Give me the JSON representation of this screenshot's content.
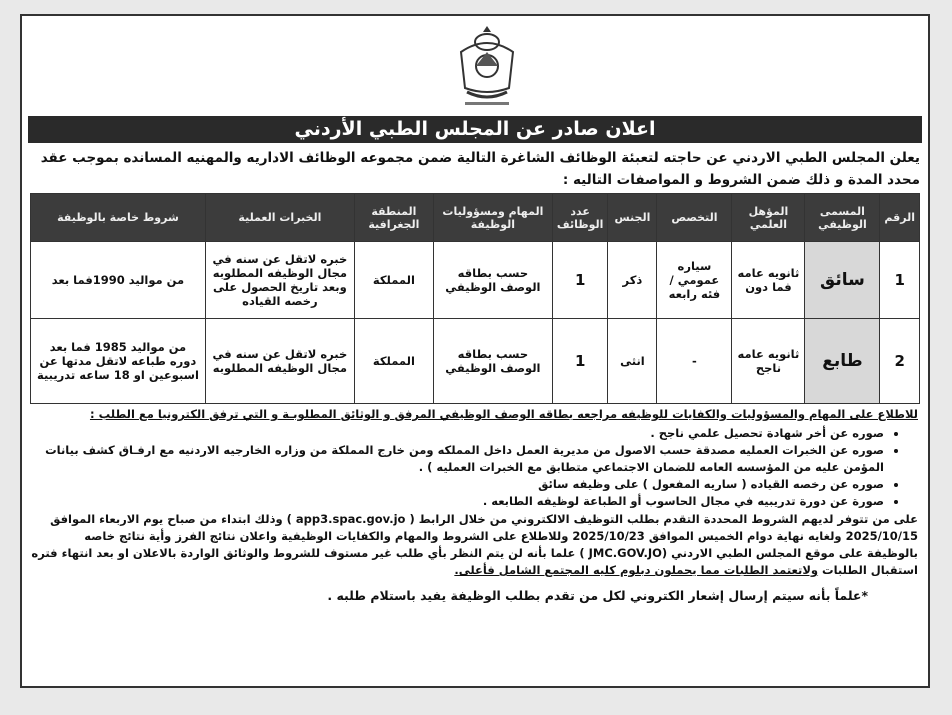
{
  "header": {
    "title": "اعلان صادر عن المجلس الطبي الأردني",
    "emblem_icon": "jordan-coat-of-arms-icon"
  },
  "intro": "يعلن المجلس الطبي الاردني  عن حاجته لتعبئة الوظائف الشاغرة التالية ضمن مجموعه الوظائف الاداريه والمهنيه المسانده بموجب عقد محدد المدة  و ذلك ضمن الشروط و المواصفات التاليه :",
  "table": {
    "headers": [
      "الرقم",
      "المسمى الوظيفي",
      "المؤهل العلمي",
      "التخصص",
      "الجنس",
      "عدد الوظائف",
      "المهام ومسؤوليات الوظيفة",
      "المنطقة الجغرافية",
      "الخبرات العملية",
      "شروط خاصة بالوظيفة"
    ],
    "rows": [
      [
        "1",
        "سائق",
        "ثانويه عامه فما دون",
        "سياره عمومي / فئه رابعه",
        "ذكر",
        "1",
        "حسب بطاقه الوصف الوظيفي",
        "المملكة",
        "خبره لاتقل عن سنه في مجال الوظيفه المطلوبه وبعد تاريخ الحصول على رخصه القياده",
        "من مواليد 1990فما بعد"
      ],
      [
        "2",
        "طابع",
        "ثانويه عامه ناجح",
        "-",
        "انثى",
        "1",
        "حسب بطاقه الوصف الوظيفي",
        "المملكة",
        "خبره لاتقل عن سنه في مجال الوظيفه المطلوبه",
        "من مواليد 1985 فما بعد دوره طباعه لاتقل مدتها عن اسبوعين او 18 ساعه تدريبية"
      ]
    ]
  },
  "notes": {
    "heading": "للاطلاع على المهام والمسؤوليات والكفايات للوظيفه مراجعه بطاقه الوصف الوظيفي المرفق و الوثائق المطلوبـة و التي ترفق الكترونيا مع الطلب :",
    "items": [
      "صوره عن أخر  شهادة تحصيل علمي ناجح .",
      "صوره عن الخبرات العمليه مصدقة حسب الاصول من مديرية العمل داخل المملكه ومن خارج المملكة من وزاره الخارجيه الاردنيه مع ارفـاق كشف بيانات المؤمن عليه من المؤسسه العامه للضمان الاجتماعي متطابق مع الخبرات العمليه ) .",
      "صوره عن رخصه القياده ( ساريه المفعول ) على وظيفه سائق",
      "صورة عن دورة تدريبيه في  مجال الحاسوب أو الطباعة  لوظيفه الطابعه ."
    ],
    "apply_main": "على من تتوفر لديهم الشروط المحددة التقدم بطلب التوظيف الالكتروني من خلال الرابط (  app3.spac.gov.jo  ) وذلك ابتداء من صباح يوم  الاربعاء الموافق 2025/10/15 ولغايه نهاية دوام الخميس الموافق 2025/10/23 وللاطلاع على الشروط والمهام والكفايات الوظيفية واعلان نتائج الفرز  وأية نتائج خاصه بالوظيفة على موقع المجلس الطبي الاردني (JMC.GOV.JO  )   علما بأنه لن يتم النظر بأي طلب غير مستوف للشروط والوثائق الواردة بالاعلان او بعد انتهاء فتره استقبال الطلبات ",
    "apply_underlined": "ولاتعتمد الطلبات مما يحملون دبلوم كليه المجتمع الشامل فأعلى.",
    "final": "*علماً بأنه سيتم إرسال إشعار الكتروني لكل من تقدم بطلب الوظيفة يفيد باستلام طلبه ."
  }
}
